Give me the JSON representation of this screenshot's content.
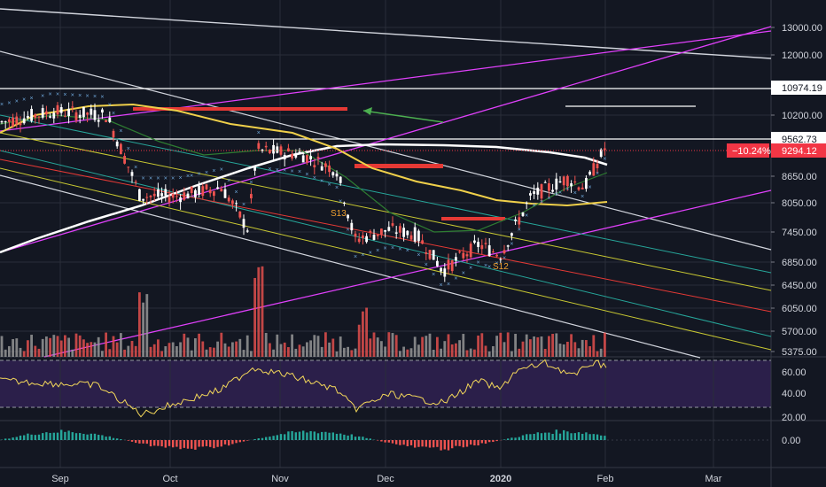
{
  "chart_data": [
    {
      "type": "candlestick",
      "panel": "price",
      "y_ticks": [
        "13000.00",
        "12000.00",
        "10200.00",
        "8650.00",
        "8050.00",
        "7450.00",
        "6850.00",
        "6450.00",
        "6050.00",
        "5700.00",
        "5375.00"
      ],
      "x_ticks": [
        "Sep",
        "Oct",
        "Nov",
        "Dec",
        "2020",
        "Feb",
        "Mar"
      ],
      "price_labels": [
        {
          "text": "10974.19",
          "style": "white"
        },
        {
          "text": "9562.73",
          "style": "white"
        },
        {
          "text": "9294.12",
          "style": "red",
          "pct": "−10.24%"
        }
      ],
      "annotations": [
        "S13",
        "S12"
      ],
      "colors": {
        "up": "#ffffff",
        "down": "#ef5350",
        "background": "#131722",
        "grid": "#2a2e39",
        "magenta": "#e040fb",
        "ma_white": "#ffffff",
        "ma_yellow": "#f0d04a",
        "level_red": "#e53935",
        "arrow_green": "#4caf50",
        "dots": "#6fa8dc"
      }
    },
    {
      "type": "bar",
      "panel": "volume",
      "colors": {
        "up": "#9e9e9e",
        "down": "#ef5350"
      }
    },
    {
      "type": "line",
      "panel": "oscillator",
      "y_ticks": [
        "60.00",
        "40.00",
        "20.00"
      ],
      "levels": [
        70,
        30
      ],
      "colors": {
        "line": "#f3d75a",
        "fill": "#3b2b63"
      }
    },
    {
      "type": "histogram",
      "panel": "momentum",
      "y_ticks": [
        "0.00"
      ],
      "colors": {
        "pos": "#26a69a",
        "neg": "#ef5350"
      }
    }
  ]
}
